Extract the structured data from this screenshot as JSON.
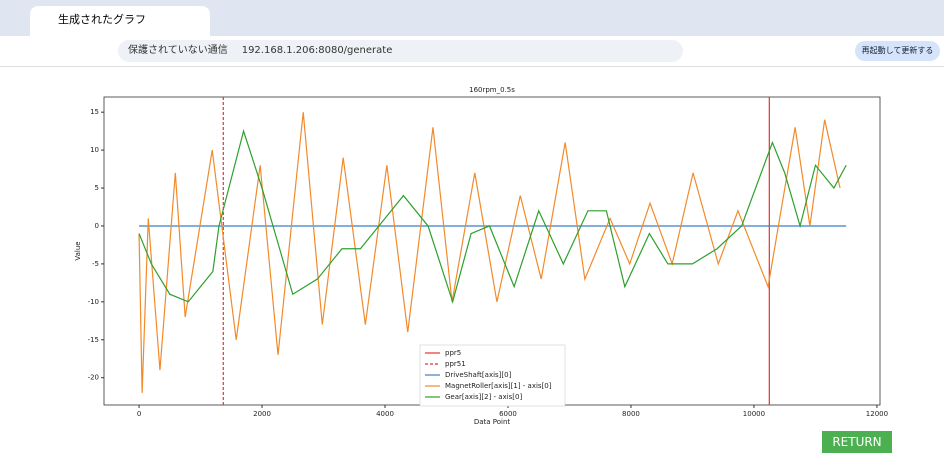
{
  "browser": {
    "tab_title": "生成されたグラフ",
    "security": "保護されていない通信",
    "url": "192.168.1.206:8080/generate",
    "update_button": "再起動して更新する"
  },
  "return_button": "RETURN",
  "chart_data": {
    "type": "line",
    "title": "160rpm_0.5s",
    "xlabel": "Data Point",
    "ylabel": "Value",
    "xlim": [
      -570,
      12050
    ],
    "ylim": [
      -23.6,
      17
    ],
    "xticks": [
      0,
      2000,
      4000,
      6000,
      8000,
      10000,
      12000
    ],
    "yticks": [
      -20,
      -15,
      -10,
      -5,
      0,
      5,
      10,
      15
    ],
    "legend": "lower center",
    "series": [
      {
        "name": "ppr5",
        "color": "#e8312f",
        "kind": "vline",
        "linestyle": "solid",
        "x": 10250
      },
      {
        "name": "ppr51",
        "color": "#e8312f",
        "kind": "vline",
        "linestyle": "dashed",
        "x": 1370
      },
      {
        "name": "DriveShaft[axis][0]",
        "color": "#3b7fc4",
        "x": [
          0,
          11500
        ],
        "values": [
          0,
          0
        ]
      },
      {
        "name": "MagnetRoller[axis][1] - axis[0]",
        "color": "#f28a2a",
        "x": [
          0,
          50,
          150,
          340,
          590,
          750,
          1190,
          1580,
          1970,
          2260,
          2670,
          2980,
          3320,
          3680,
          4030,
          4370,
          4780,
          5090,
          5460,
          5820,
          6200,
          6540,
          6930,
          7250,
          7660,
          7980,
          8310,
          8670,
          9010,
          9420,
          9740,
          10230,
          10670,
          10910,
          11150,
          11400
        ],
        "values": [
          -1,
          -22,
          1,
          -19,
          7,
          -12,
          10,
          -15,
          8,
          -17,
          15,
          -13,
          9,
          -13,
          8,
          -14,
          13,
          -10,
          7,
          -10,
          4,
          -7,
          11,
          -7,
          1,
          -5,
          3,
          -5,
          7,
          -5,
          2,
          -8,
          13,
          0,
          14,
          5
        ]
      },
      {
        "name": "Gear[axis][2] - axis[0]",
        "color": "#2ca02c",
        "x": [
          0,
          200,
          500,
          800,
          1000,
          1200,
          1300,
          1700,
          2000,
          2500,
          2900,
          3300,
          3600,
          3900,
          4300,
          4700,
          5100,
          5400,
          5700,
          6100,
          6500,
          6900,
          7300,
          7600,
          7900,
          8300,
          8600,
          9000,
          9400,
          9800,
          10300,
          10500,
          10750,
          11000,
          11300,
          11500
        ],
        "values": [
          -1,
          -5,
          -9,
          -10,
          -8,
          -6,
          0,
          12.5,
          5,
          -9,
          -7,
          -3,
          -3,
          0,
          4,
          0,
          -10,
          -1,
          0,
          -8,
          2,
          -5,
          2,
          2,
          -8,
          -1,
          -5,
          -5,
          -3,
          0,
          11,
          7,
          0,
          8,
          5,
          8
        ]
      }
    ]
  }
}
